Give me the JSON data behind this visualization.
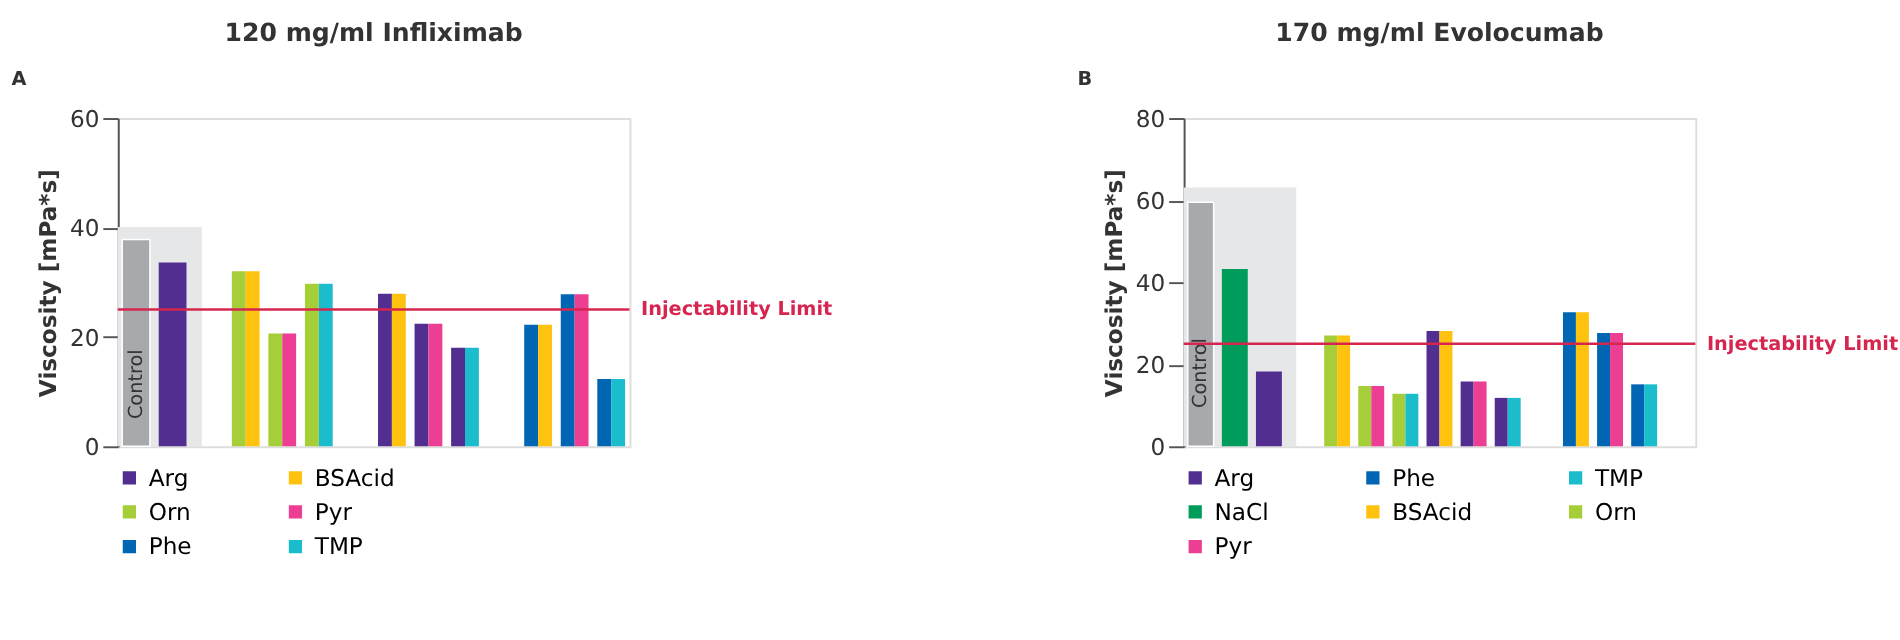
{
  "chart_data": [
    {
      "type": "bar",
      "title": "120 mg/ml Infliximab",
      "ylabel": "Viscosity [mPa*s]",
      "annotations": [
        "A"
      ],
      "categories": [
        null,
        null,
        null,
        null,
        null,
        null,
        null,
        null,
        null,
        null,
        null,
        null,
        null,
        null
      ],
      "series": [
        {
          "name": "Control",
          "color": "#a7a9ac",
          "values": [
            37.8,
            null,
            null,
            null,
            null,
            null,
            null,
            null,
            null,
            null,
            null,
            null,
            null,
            null
          ]
        },
        {
          "name": "Arg",
          "color": "#522e91",
          "values": [
            null,
            33.6,
            null,
            null,
            null,
            null,
            null,
            27.9,
            22.4,
            18,
            null,
            null,
            null,
            null
          ]
        },
        {
          "name": "Orn",
          "color": "#a6ce39",
          "values": [
            null,
            null,
            null,
            32,
            20.6,
            29.7,
            null,
            null,
            null,
            null,
            null,
            null,
            null,
            null
          ]
        },
        {
          "name": "Phe",
          "color": "#0066b3",
          "values": [
            null,
            null,
            null,
            null,
            null,
            null,
            null,
            null,
            null,
            null,
            null,
            22.2,
            27.8,
            12.3
          ]
        },
        {
          "name": "BSAcid",
          "color": "#ffc20e",
          "values": [
            null,
            null,
            null,
            32,
            null,
            null,
            null,
            27.9,
            null,
            null,
            null,
            22.2,
            null,
            null
          ]
        },
        {
          "name": "Pyr",
          "color": "#ec3f94",
          "values": [
            null,
            null,
            null,
            null,
            20.6,
            null,
            null,
            null,
            22.4,
            null,
            null,
            null,
            27.8,
            null
          ]
        },
        {
          "name": "TMP",
          "color": "#1bbccb",
          "values": [
            null,
            null,
            null,
            null,
            null,
            29.7,
            null,
            null,
            null,
            18,
            null,
            null,
            null,
            12.3
          ]
        }
      ],
      "ylim": [
        0,
        60
      ],
      "yticks": [
        0,
        20,
        40,
        60
      ],
      "grid": false,
      "tick_labels": "y",
      "legend": "bottom",
      "ref_lines": [
        {
          "axis": "y",
          "value": 25,
          "label": "Injectability Limit",
          "color": "#d6264f"
        }
      ]
    },
    {
      "type": "bar",
      "title": "170 mg/ml Evolocumab",
      "ylabel": "Viscosity [mPa*s]",
      "annotations": [
        "B"
      ],
      "categories": [
        null,
        null,
        null,
        null,
        null,
        null,
        null,
        null,
        null,
        null,
        null,
        null,
        null,
        null,
        null
      ],
      "series": [
        {
          "name": "Control",
          "color": "#a7a9ac",
          "values": [
            59.5,
            null,
            null,
            null,
            null,
            null,
            null,
            null,
            null,
            null,
            null,
            null,
            null,
            null,
            null
          ]
        },
        {
          "name": "Arg",
          "color": "#522e91",
          "values": [
            null,
            null,
            18.2,
            null,
            null,
            null,
            null,
            28.1,
            15.8,
            11.8,
            null,
            null,
            null,
            null,
            null
          ]
        },
        {
          "name": "NaCl",
          "color": "#009c5b",
          "values": [
            null,
            43.2,
            null,
            null,
            null,
            null,
            null,
            null,
            null,
            null,
            null,
            null,
            null,
            null,
            null
          ]
        },
        {
          "name": "Orn",
          "color": "#a6ce39",
          "values": [
            null,
            null,
            null,
            null,
            27,
            14.7,
            12.8,
            null,
            null,
            null,
            null,
            null,
            null,
            null,
            null
          ]
        },
        {
          "name": "Phe",
          "color": "#0066b3",
          "values": [
            null,
            null,
            null,
            null,
            null,
            null,
            null,
            null,
            null,
            null,
            null,
            32.7,
            27.6,
            15.1,
            null
          ]
        },
        {
          "name": "BSAcid",
          "color": "#ffc20e",
          "values": [
            null,
            null,
            null,
            null,
            27,
            null,
            null,
            28.1,
            null,
            null,
            null,
            32.7,
            null,
            null,
            null
          ]
        },
        {
          "name": "Pyr",
          "color": "#ec3f94",
          "values": [
            null,
            null,
            null,
            null,
            null,
            14.7,
            null,
            null,
            15.8,
            null,
            null,
            null,
            27.6,
            null,
            null
          ]
        },
        {
          "name": "TMP",
          "color": "#1bbccb",
          "values": [
            null,
            null,
            null,
            null,
            null,
            null,
            12.8,
            null,
            null,
            11.8,
            null,
            null,
            null,
            15.1,
            null
          ]
        }
      ],
      "ylim": [
        0,
        80
      ],
      "yticks": [
        0,
        20,
        40,
        60,
        80
      ],
      "grid": false,
      "tick_labels": "y",
      "legend": "bottom",
      "ref_lines": [
        {
          "axis": "y",
          "value": 25,
          "label": "Injectability Limit",
          "color": "#d6264f"
        }
      ]
    }
  ]
}
